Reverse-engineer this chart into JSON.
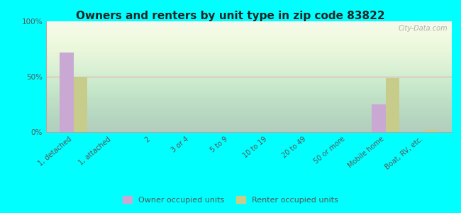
{
  "title": "Owners and renters by unit type in zip code 83822",
  "categories": [
    "1, detached",
    "1, attached",
    "2",
    "3 or 4",
    "5 to 9",
    "10 to 19",
    "20 to 49",
    "50 or more",
    "Mobile home",
    "Boat, RV, etc."
  ],
  "owner_values": [
    72,
    0,
    0,
    0,
    0,
    0,
    0,
    0,
    25,
    0
  ],
  "renter_values": [
    50,
    0,
    0,
    0,
    0,
    0,
    0,
    0,
    49,
    2
  ],
  "owner_color": "#c9a8d4",
  "renter_color": "#c8cc8a",
  "background_color": "#00ffff",
  "ylim": [
    0,
    100
  ],
  "yticks": [
    0,
    50,
    100
  ],
  "ytick_labels": [
    "0%",
    "50%",
    "100%"
  ],
  "legend_labels": [
    "Owner occupied units",
    "Renter occupied units"
  ],
  "bar_width": 0.35,
  "title_fontsize": 11,
  "watermark": "City-Data.com"
}
